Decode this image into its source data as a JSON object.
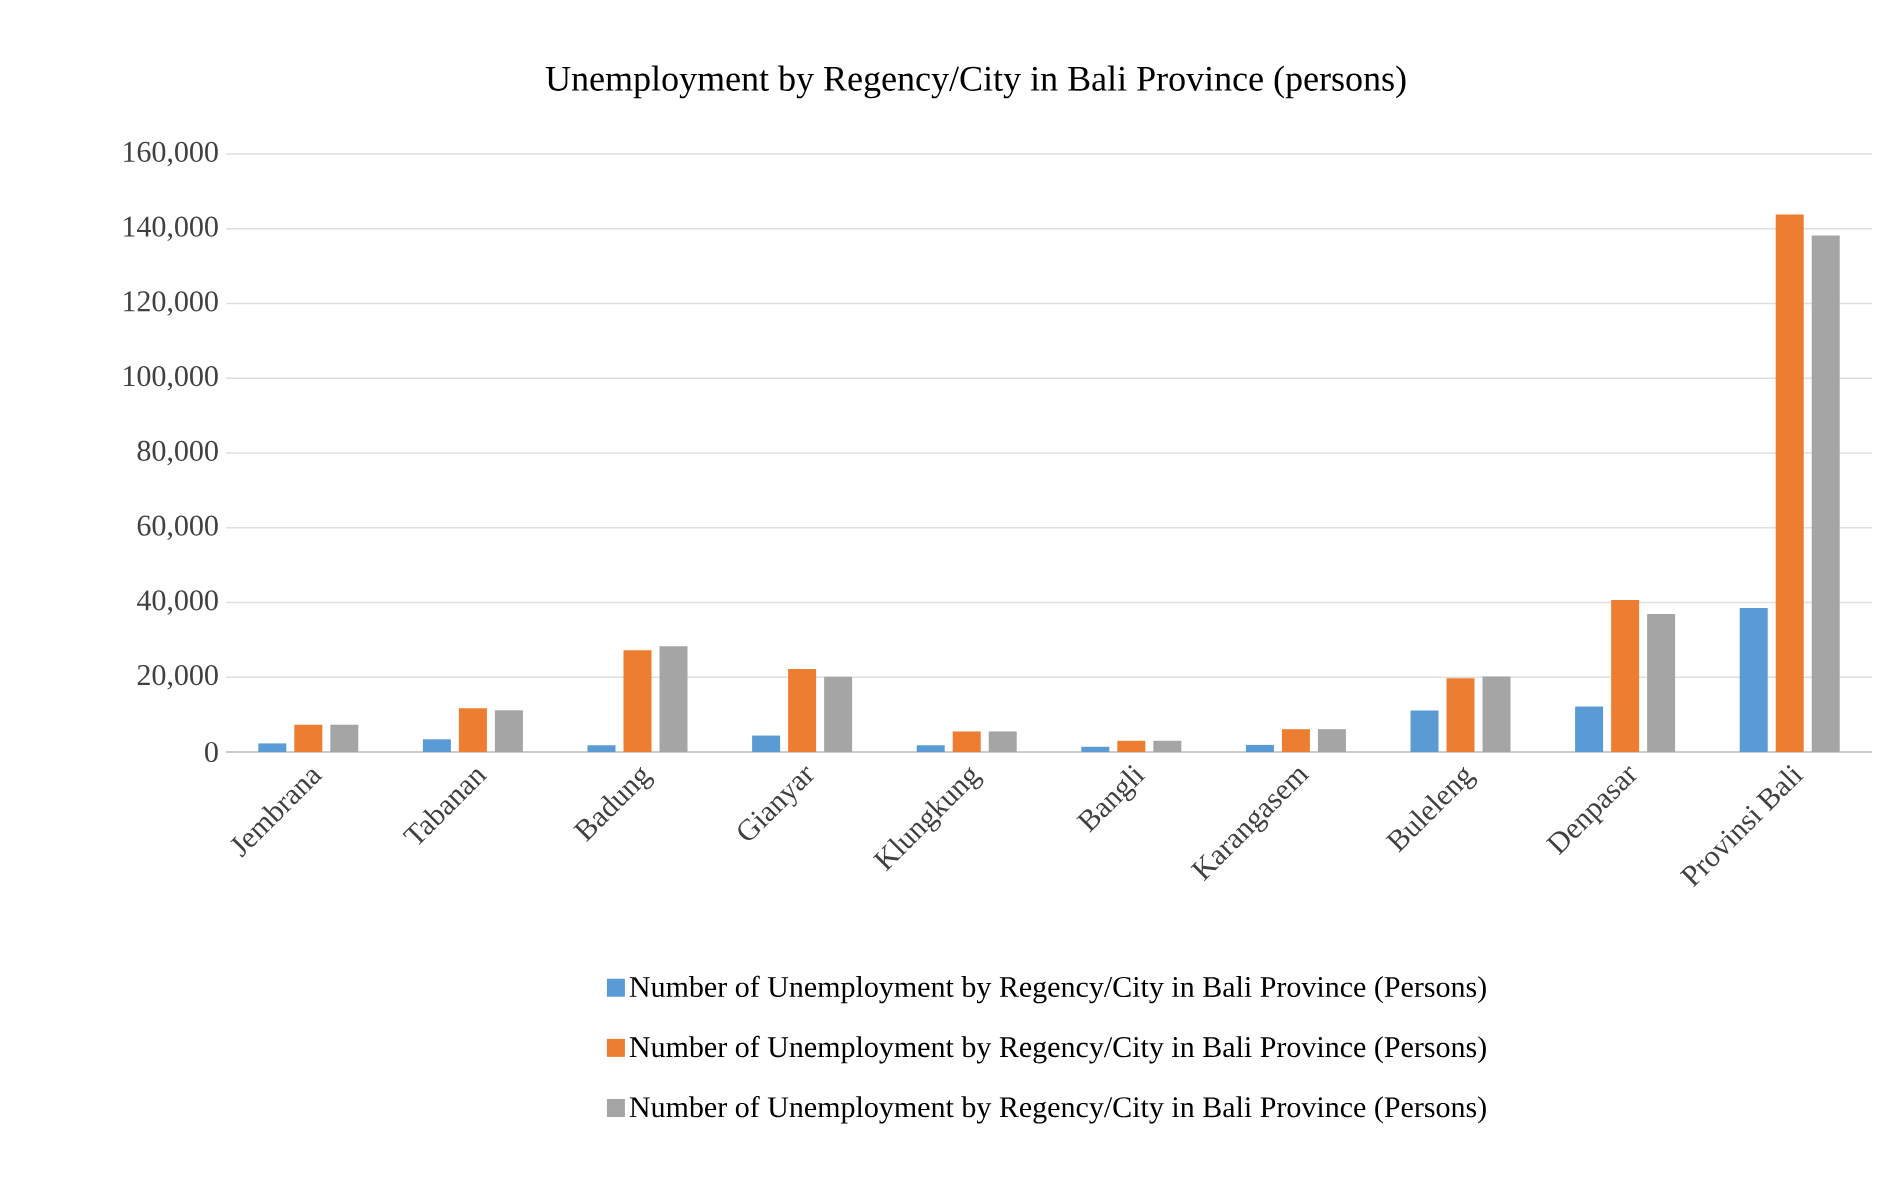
{
  "chart_data": {
    "type": "bar",
    "title": "Unemployment by Regency/City in Bali Province (persons)",
    "categories": [
      "Jembrana",
      "Tabanan",
      "Badung",
      "Gianyar",
      "Klungkung",
      "Bangli",
      "Karangasem",
      "Buleleng",
      "Denpasar",
      "Provinsi Bali"
    ],
    "series": [
      {
        "name": "Number of Unemployment by Regency/City in Bali Province (Persons)",
        "color": "#5b9bd5",
        "values": [
          2300,
          3400,
          1800,
          4400,
          1800,
          1400,
          1900,
          11100,
          12200,
          38500
        ]
      },
      {
        "name": "Number of Unemployment by Regency/City in Bali Province (Persons)",
        "color": "#ed7d31",
        "values": [
          7300,
          11700,
          27200,
          22200,
          5500,
          3000,
          6100,
          19700,
          40700,
          143800
        ]
      },
      {
        "name": "Number of Unemployment by Regency/City in Bali Province (Persons)",
        "color": "#a5a5a5",
        "values": [
          7300,
          11200,
          28300,
          20100,
          5500,
          3000,
          6100,
          20200,
          36900,
          138200
        ]
      }
    ],
    "ylim": [
      0,
      160000
    ],
    "yticks": [
      0,
      {
        "value": 20000,
        "label": "20,000"
      },
      {
        "value": 40000,
        "label": "40,000"
      },
      {
        "value": 60000,
        "label": "60,000"
      },
      {
        "value": 80000,
        "label": "80,000"
      },
      {
        "value": 100000,
        "label": "100,000"
      },
      {
        "value": 120000,
        "label": "120,000"
      },
      {
        "value": 140000,
        "label": "140,000"
      },
      {
        "value": 160000,
        "label": "160,000"
      }
    ],
    "grid": "y",
    "legend": "bottom"
  }
}
